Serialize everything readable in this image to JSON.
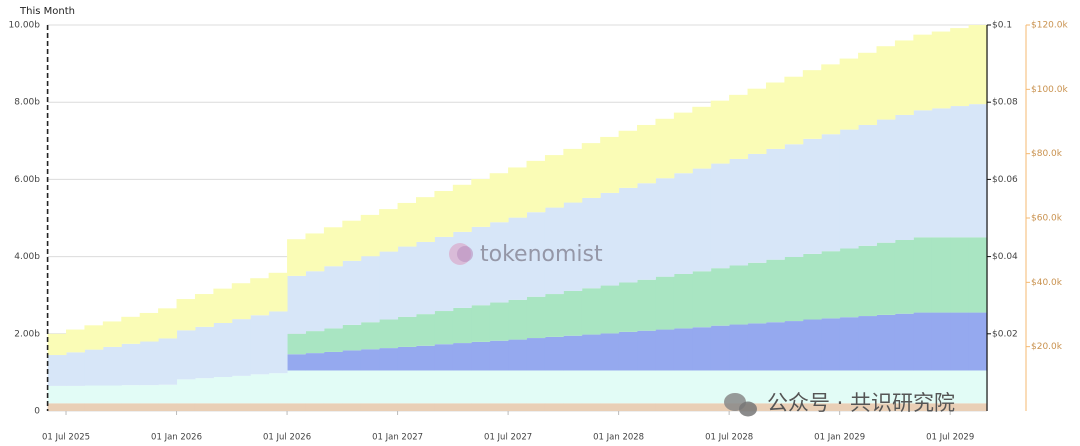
{
  "chart_data": {
    "type": "stacked-step-area",
    "title": "This Month",
    "watermark": "tokenomist",
    "source_badge": "公众号 · 共识研究院",
    "categories": [
      null,
      "01 Jul 2025",
      null,
      null,
      null,
      null,
      null,
      "01 Jan 2026",
      null,
      null,
      null,
      null,
      null,
      "01 Jul 2026",
      null,
      null,
      null,
      null,
      null,
      "01 Jan 2027",
      null,
      null,
      null,
      null,
      null,
      "01 Jul 2027",
      null,
      null,
      null,
      null,
      null,
      "01 Jan 2028",
      null,
      null,
      null,
      null,
      null,
      "01 Jul 2028",
      null,
      null,
      null,
      null,
      null,
      "01 Jan 2029",
      null,
      null,
      null,
      null,
      null,
      "01 Jul 2029",
      null
    ],
    "series": [
      {
        "color": "#e9cfb6",
        "values": [
          0.2,
          0.2,
          0.2,
          0.2,
          0.2,
          0.2,
          0.2,
          0.2,
          0.2,
          0.2,
          0.2,
          0.2,
          0.2,
          0.2,
          0.2,
          0.2,
          0.2,
          0.2,
          0.2,
          0.2,
          0.2,
          0.2,
          0.2,
          0.2,
          0.2,
          0.2,
          0.2,
          0.2,
          0.2,
          0.2,
          0.2,
          0.2,
          0.2,
          0.2,
          0.2,
          0.2,
          0.2,
          0.2,
          0.2,
          0.2,
          0.2,
          0.2,
          0.2,
          0.2,
          0.2,
          0.2,
          0.2,
          0.2,
          0.2,
          0.2,
          0.2
        ]
      },
      {
        "color": "#e2fcf6",
        "values": [
          0.45,
          0.45,
          0.46,
          0.46,
          0.47,
          0.47,
          0.48,
          0.62,
          0.65,
          0.68,
          0.71,
          0.75,
          0.78,
          0.85,
          0.85,
          0.85,
          0.85,
          0.85,
          0.85,
          0.85,
          0.85,
          0.85,
          0.85,
          0.85,
          0.85,
          0.85,
          0.85,
          0.85,
          0.85,
          0.85,
          0.85,
          0.85,
          0.85,
          0.85,
          0.85,
          0.85,
          0.85,
          0.85,
          0.85,
          0.85,
          0.85,
          0.85,
          0.85,
          0.85,
          0.85,
          0.85,
          0.85,
          0.85,
          0.85,
          0.85,
          0.85
        ]
      },
      {
        "color": "#95a9ef",
        "values": [
          0,
          0,
          0,
          0,
          0,
          0,
          0,
          0,
          0,
          0,
          0,
          0,
          0,
          0.42,
          0.45,
          0.48,
          0.52,
          0.55,
          0.58,
          0.61,
          0.64,
          0.68,
          0.71,
          0.74,
          0.77,
          0.8,
          0.84,
          0.87,
          0.9,
          0.93,
          0.96,
          1.0,
          1.03,
          1.06,
          1.09,
          1.12,
          1.16,
          1.19,
          1.22,
          1.25,
          1.28,
          1.32,
          1.35,
          1.38,
          1.41,
          1.44,
          1.47,
          1.5,
          1.5,
          1.5,
          1.5
        ]
      },
      {
        "color": "#a9e5c2",
        "values": [
          0,
          0,
          0,
          0,
          0,
          0,
          0,
          0,
          0,
          0,
          0,
          0,
          0,
          0.53,
          0.57,
          0.61,
          0.66,
          0.7,
          0.74,
          0.78,
          0.82,
          0.86,
          0.91,
          0.95,
          0.99,
          1.03,
          1.07,
          1.11,
          1.16,
          1.2,
          1.24,
          1.28,
          1.32,
          1.37,
          1.41,
          1.45,
          1.49,
          1.53,
          1.57,
          1.62,
          1.66,
          1.7,
          1.74,
          1.78,
          1.82,
          1.87,
          1.91,
          1.95,
          1.95,
          1.95,
          1.95
        ]
      },
      {
        "color": "#d7e6f8",
        "values": [
          0.8,
          0.87,
          0.93,
          1.0,
          1.07,
          1.13,
          1.2,
          1.27,
          1.33,
          1.4,
          1.47,
          1.53,
          1.6,
          1.5,
          1.55,
          1.61,
          1.66,
          1.71,
          1.76,
          1.82,
          1.87,
          1.92,
          1.97,
          2.03,
          2.08,
          2.13,
          2.19,
          2.24,
          2.29,
          2.34,
          2.4,
          2.45,
          2.5,
          2.55,
          2.61,
          2.66,
          2.71,
          2.76,
          2.82,
          2.87,
          2.92,
          2.98,
          3.03,
          3.08,
          3.13,
          3.19,
          3.24,
          3.29,
          3.34,
          3.4,
          3.45
        ]
      },
      {
        "color": "#fafcb6",
        "values": [
          0.55,
          0.59,
          0.63,
          0.66,
          0.7,
          0.74,
          0.78,
          0.81,
          0.85,
          0.89,
          0.93,
          0.96,
          1.0,
          0.95,
          0.98,
          1.01,
          1.04,
          1.07,
          1.1,
          1.13,
          1.16,
          1.19,
          1.22,
          1.24,
          1.27,
          1.3,
          1.33,
          1.36,
          1.39,
          1.42,
          1.45,
          1.48,
          1.51,
          1.54,
          1.57,
          1.6,
          1.63,
          1.66,
          1.69,
          1.72,
          1.75,
          1.78,
          1.81,
          1.84,
          1.87,
          1.9,
          1.93,
          1.96,
          1.99,
          2.02,
          2.05
        ]
      }
    ],
    "ylim": [
      0,
      10
    ],
    "yticks": [
      0,
      {
        "value": 2,
        "label": "2.00b"
      },
      {
        "value": 4,
        "label": "4.00b"
      },
      {
        "value": 6,
        "label": "6.00b"
      },
      {
        "value": 8,
        "label": "8.00b"
      },
      {
        "value": 10,
        "label": "10.00b"
      }
    ],
    "y2lim": [
      0,
      0.1
    ],
    "y2ticks": [
      {
        "value": 0.02,
        "label": "$0.02"
      },
      {
        "value": 0.04,
        "label": "$0.04"
      },
      {
        "value": 0.06,
        "label": "$0.06"
      },
      {
        "value": 0.08,
        "label": "$0.08"
      },
      {
        "value": 0.1,
        "label": "$0.1"
      }
    ],
    "y3lim": [
      0,
      120000
    ],
    "y3ticks": [
      {
        "value": 20000,
        "label": "$20.0k"
      },
      {
        "value": 40000,
        "label": "$40.0k"
      },
      {
        "value": 60000,
        "label": "$60.0k"
      },
      {
        "value": 80000,
        "label": "$80.0k"
      },
      {
        "value": 100000,
        "label": "$100.0k"
      },
      {
        "value": 120000,
        "label": "$120.0k"
      }
    ],
    "grid": true
  }
}
